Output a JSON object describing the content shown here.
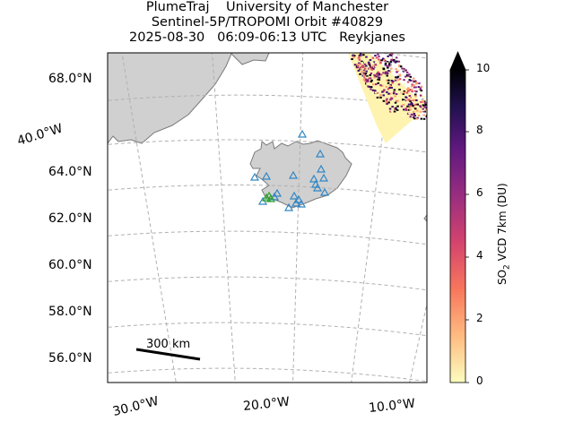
{
  "title": {
    "line1": "PlumeTraj    University of Manchester",
    "line2": "Sentinel-5P/TROPOMI Orbit #40829",
    "line3": "2025-08-30   06:09-06:13 UTC   Reykjanes"
  },
  "map": {
    "projection": "conic",
    "lat_labels": [
      "68.0°N",
      "64.0°N",
      "62.0°N",
      "60.0°N",
      "58.0°N",
      "56.0°N"
    ],
    "lon_labels_bottom": [
      "30.0°W",
      "20.0°W",
      "10.0°W"
    ],
    "lon_label_left": "40.0°W",
    "gridlines": "dashed",
    "land_color": "#d0d0d0",
    "coast_color": "#7a7a7a",
    "volcano_marker_color": "#2f86c5",
    "target_marker_color": "#2ca02c"
  },
  "scale_bar": {
    "label": "300 km"
  },
  "colorbar": {
    "label_prefix": "SO",
    "label_sub": "2",
    "label_suffix": " VCD 7km (DU)",
    "ticks": [
      "10",
      "8",
      "6",
      "4",
      "2",
      "0"
    ],
    "range": [
      0,
      10
    ],
    "extend": "max",
    "colormap": "magma_r"
  }
}
